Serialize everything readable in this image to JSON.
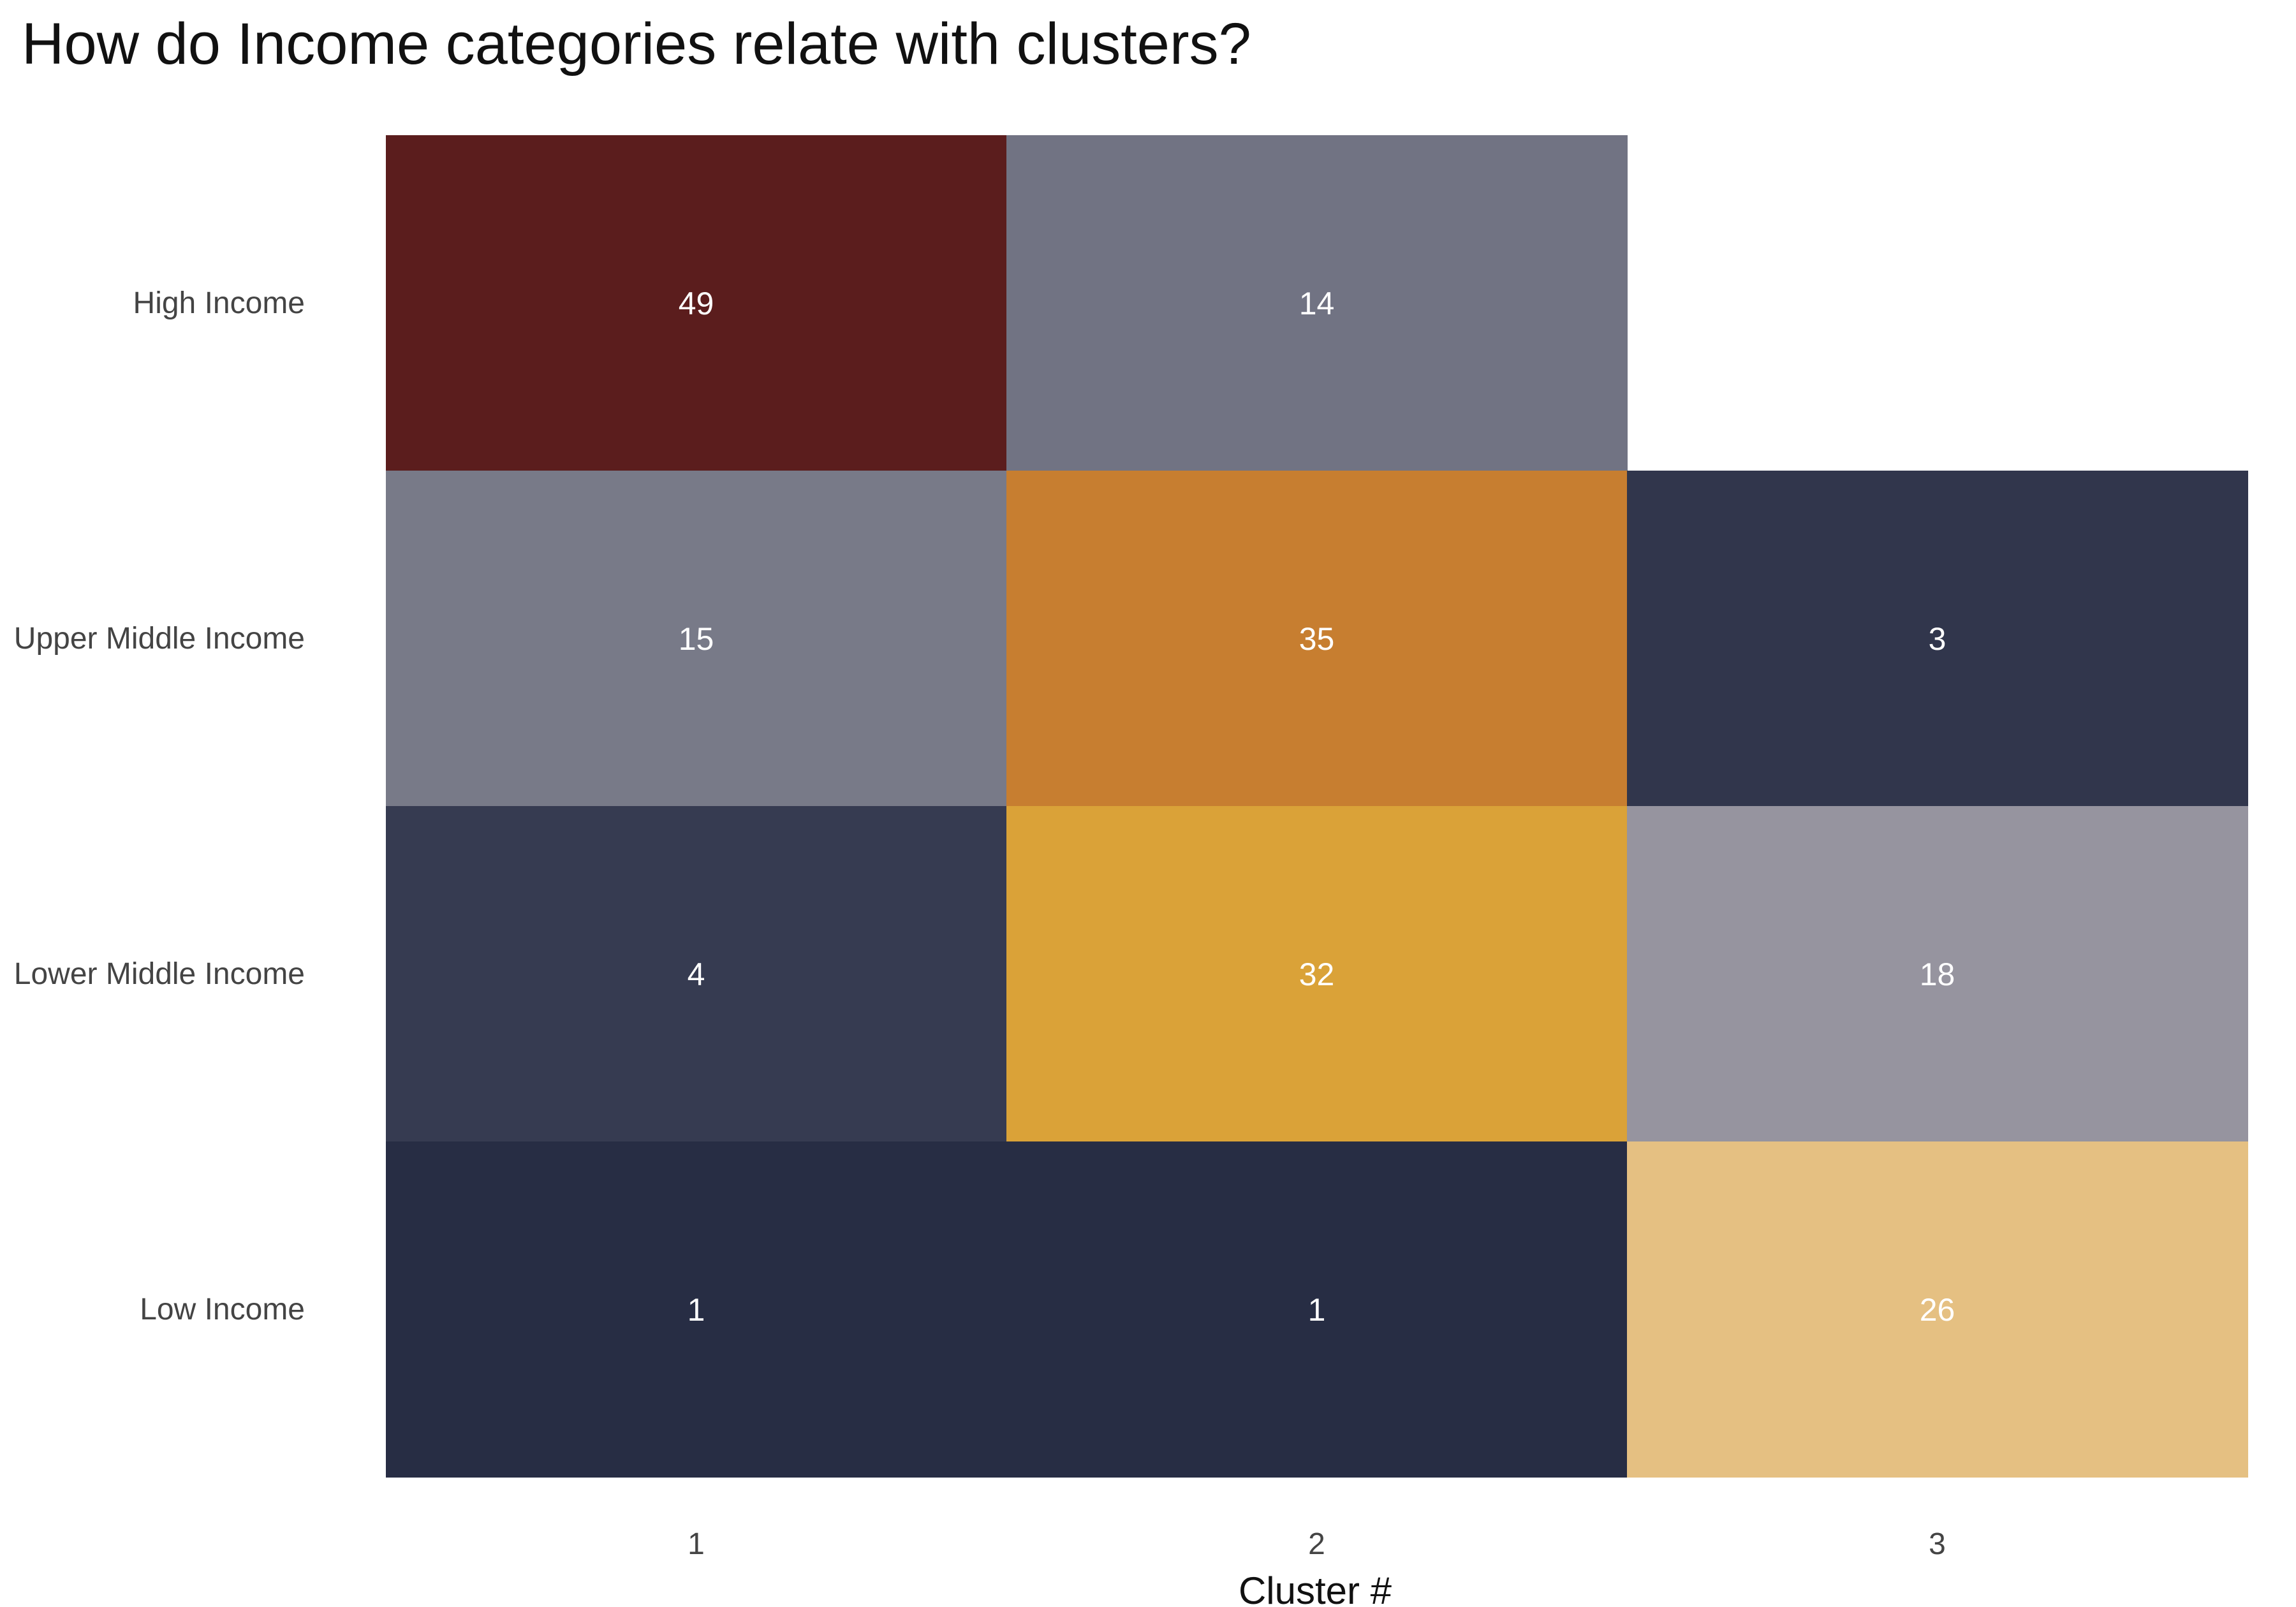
{
  "chart_data": {
    "type": "heatmap",
    "title": "How do Income categories relate with clusters?",
    "xlabel": "Cluster #",
    "ylabel": "",
    "x_categories": [
      "1",
      "2",
      "3"
    ],
    "y_categories": [
      "High Income",
      "Upper Middle Income",
      "Lower Middle Income",
      "Low Income"
    ],
    "cells": [
      {
        "x": "1",
        "y": "High Income",
        "value": 49,
        "color": "#5b1d1d"
      },
      {
        "x": "2",
        "y": "High Income",
        "value": 14,
        "color": "#717383"
      },
      {
        "x": "1",
        "y": "Upper Middle Income",
        "value": 15,
        "color": "#787a88"
      },
      {
        "x": "2",
        "y": "Upper Middle Income",
        "value": 35,
        "color": "#c77e30"
      },
      {
        "x": "3",
        "y": "Upper Middle Income",
        "value": 3,
        "color": "#31364c"
      },
      {
        "x": "1",
        "y": "Lower Middle Income",
        "value": 4,
        "color": "#363b51"
      },
      {
        "x": "2",
        "y": "Lower Middle Income",
        "value": 32,
        "color": "#daa238"
      },
      {
        "x": "3",
        "y": "Lower Middle Income",
        "value": 18,
        "color": "#96949f"
      },
      {
        "x": "1",
        "y": "Low Income",
        "value": 1,
        "color": "#272d44"
      },
      {
        "x": "2",
        "y": "Low Income",
        "value": 1,
        "color": "#272d44"
      },
      {
        "x": "3",
        "y": "Low Income",
        "value": 26,
        "color": "#e5c082"
      }
    ],
    "legend": "none",
    "grid": false
  }
}
